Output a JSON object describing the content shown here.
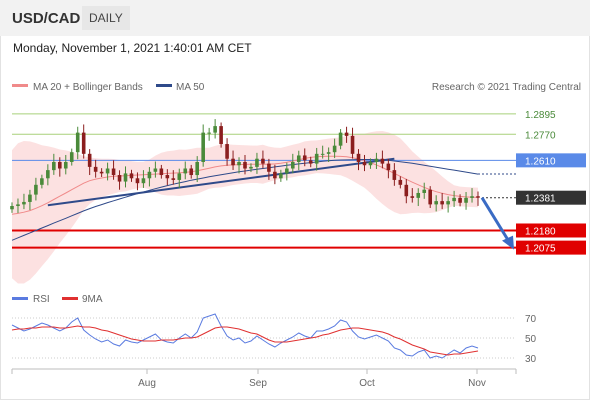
{
  "header": {
    "pair": "USD/CAD",
    "period": "DAILY"
  },
  "timestamp": "Monday, November 1, 2021 1:40:01 AM CET",
  "legend": {
    "ma20": "MA 20 + Bollinger Bands",
    "ma50": "MA 50",
    "rsi": "RSI",
    "ma9": "9MA"
  },
  "credit": "Research © 2021 Trading Central",
  "colors": {
    "up": "#4a8a3a",
    "down": "#8b1e1e",
    "ma20": "#f08a8a",
    "band": "#fcdcdc",
    "ma50": "#2f4a8a",
    "resistance": "#a8d07a",
    "pivot": "#5a8ae8",
    "support": "#e00000",
    "rsi": "#5a7be0",
    "rsi9ma": "#e03030"
  },
  "chart_data": [
    {
      "type": "candlestick",
      "series": [
        "MA 20 + Bollinger Bands",
        "MA 50"
      ],
      "x_ticks": [
        "Aug",
        "Sep",
        "Oct",
        "Nov"
      ],
      "ylim": [
        1.195,
        1.298
      ],
      "levels": [
        {
          "label": "1.2895",
          "value": 1.2895,
          "kind": "resistance"
        },
        {
          "label": "1.2770",
          "value": 1.277,
          "kind": "resistance"
        },
        {
          "label": "1.2610",
          "value": 1.261,
          "kind": "pivot"
        },
        {
          "label": "1.2381",
          "value": 1.2381,
          "kind": "last"
        },
        {
          "label": "1.2180",
          "value": 1.218,
          "kind": "support"
        },
        {
          "label": "1.2075",
          "value": 1.2075,
          "kind": "support"
        }
      ],
      "trendline": {
        "from": 1.2335,
        "to": 1.262
      },
      "forecast": {
        "from": 1.2381,
        "to": 1.2075
      },
      "close": [
        1.233,
        1.234,
        1.2355,
        1.24,
        1.246,
        1.25,
        1.255,
        1.26,
        1.256,
        1.26,
        1.266,
        1.278,
        1.265,
        1.257,
        1.254,
        1.253,
        1.256,
        1.252,
        1.248,
        1.253,
        1.25,
        1.247,
        1.25,
        1.254,
        1.256,
        1.252,
        1.25,
        1.249,
        1.253,
        1.256,
        1.252,
        1.26,
        1.278,
        1.278,
        1.282,
        1.271,
        1.262,
        1.258,
        1.26,
        1.256,
        1.257,
        1.262,
        1.259,
        1.254,
        1.25,
        1.253,
        1.256,
        1.26,
        1.264,
        1.261,
        1.259,
        1.265,
        1.265,
        1.266,
        1.27,
        1.278,
        1.276,
        1.265,
        1.26,
        1.258,
        1.26,
        1.262,
        1.259,
        1.255,
        1.249,
        1.246,
        1.239,
        1.238,
        1.241,
        1.243,
        1.234,
        1.236,
        1.234,
        1.236,
        1.238,
        1.235,
        1.238,
        1.239,
        1.2381
      ],
      "ma20": [
        1.228,
        1.2285,
        1.2292,
        1.2302,
        1.2316,
        1.2332,
        1.235,
        1.237,
        1.239,
        1.241,
        1.243,
        1.245,
        1.247,
        1.2485,
        1.2495,
        1.2502,
        1.2508,
        1.2512,
        1.2514,
        1.2516,
        1.2518,
        1.252,
        1.2522,
        1.2524,
        1.2526,
        1.2528,
        1.253,
        1.2532,
        1.2534,
        1.2536,
        1.254,
        1.2546,
        1.2554,
        1.2562,
        1.257,
        1.2576,
        1.258,
        1.2582,
        1.2584,
        1.2585,
        1.2586,
        1.2586,
        1.2586,
        1.2586,
        1.2588,
        1.2592,
        1.2598,
        1.2606,
        1.2614,
        1.2622,
        1.2628,
        1.2632,
        1.2634,
        1.2635,
        1.2635,
        1.2634,
        1.2632,
        1.2626,
        1.2618,
        1.2608,
        1.2596,
        1.2582,
        1.2566,
        1.2548,
        1.253,
        1.2512,
        1.2494,
        1.2476,
        1.246,
        1.2444,
        1.243,
        1.2418,
        1.2408,
        1.24,
        1.2394,
        1.2389,
        1.2386,
        1.2384,
        1.2383
      ],
      "ma50": [
        1.212,
        1.2135,
        1.215,
        1.2165,
        1.218,
        1.2195,
        1.221,
        1.2225,
        1.224,
        1.2255,
        1.227,
        1.2285,
        1.23,
        1.2314,
        1.2327,
        1.2339,
        1.2351,
        1.2362,
        1.2373,
        1.2384,
        1.2395,
        1.2406,
        1.2416,
        1.2426,
        1.2436,
        1.2446,
        1.2455,
        1.2464,
        1.2472,
        1.248,
        1.2488,
        1.2495,
        1.2502,
        1.2509,
        1.2516,
        1.2522,
        1.2528,
        1.2534,
        1.254,
        1.2545,
        1.255,
        1.2555,
        1.256,
        1.2565,
        1.257,
        1.2575,
        1.258,
        1.2584,
        1.2588,
        1.2592,
        1.2596,
        1.26,
        1.2604,
        1.2607,
        1.261,
        1.2612,
        1.2613,
        1.2614,
        1.2615,
        1.2615,
        1.2615,
        1.2614,
        1.2612,
        1.261,
        1.2606,
        1.2602,
        1.2597,
        1.2592,
        1.2586,
        1.258,
        1.2574,
        1.2568,
        1.2562,
        1.2556,
        1.255,
        1.2544,
        1.2538,
        1.2532,
        1.2526
      ]
    },
    {
      "type": "line",
      "series": [
        "RSI",
        "9MA"
      ],
      "y_ticks": [
        "70",
        "50",
        "30"
      ],
      "ylim": [
        20,
        80
      ],
      "rsi": [
        63,
        60,
        57,
        59,
        62,
        65,
        63,
        60,
        57,
        60,
        66,
        70,
        58,
        53,
        49,
        46,
        48,
        44,
        42,
        48,
        46,
        45,
        48,
        51,
        54,
        48,
        46,
        45,
        50,
        54,
        50,
        56,
        70,
        72,
        74,
        62,
        52,
        48,
        50,
        45,
        47,
        52,
        48,
        44,
        41,
        45,
        48,
        51,
        55,
        52,
        50,
        57,
        57,
        59,
        62,
        68,
        66,
        57,
        51,
        49,
        51,
        53,
        50,
        47,
        40,
        38,
        33,
        32,
        36,
        38,
        30,
        32,
        30,
        34,
        38,
        35,
        40,
        42,
        40
      ],
      "ma9": [
        58,
        59,
        59,
        60,
        60,
        61,
        61,
        61,
        60,
        60,
        61,
        62,
        61,
        61,
        60,
        58,
        57,
        55,
        53,
        51,
        49,
        48,
        47,
        47,
        47,
        48,
        48,
        48,
        49,
        50,
        50,
        51,
        54,
        57,
        60,
        61,
        61,
        60,
        59,
        57,
        55,
        54,
        51,
        48,
        46,
        46,
        46,
        47,
        48,
        49,
        50,
        51,
        53,
        54,
        56,
        58,
        59,
        60,
        60,
        59,
        58,
        57,
        56,
        54,
        51,
        49,
        46,
        43,
        41,
        39,
        36,
        35,
        34,
        33,
        34,
        34,
        35,
        36,
        37
      ]
    }
  ]
}
